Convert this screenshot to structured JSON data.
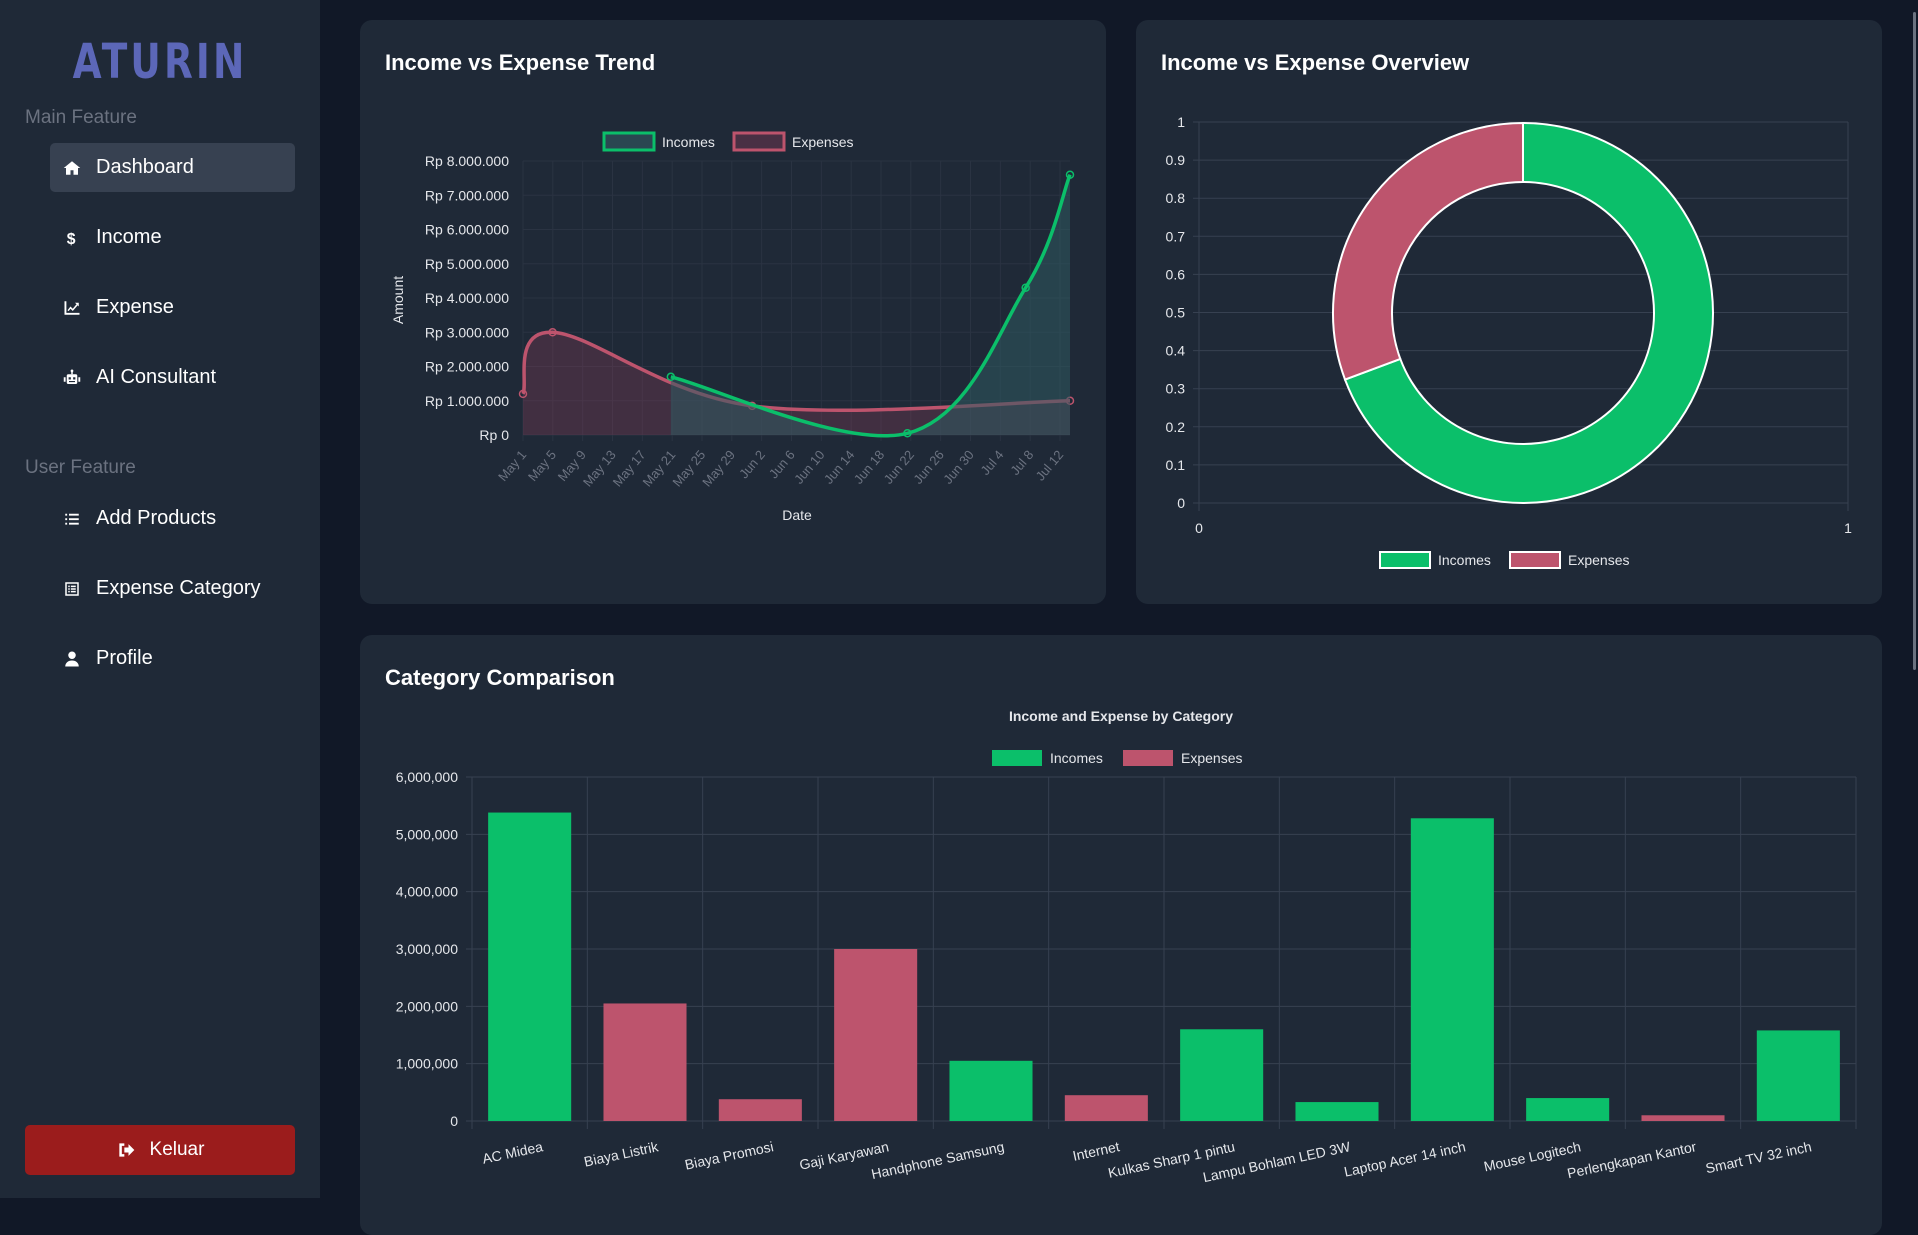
{
  "app": {
    "logo": "ATURIN"
  },
  "sidebar": {
    "main_section": "Main Feature",
    "main_items": [
      {
        "label": "Dashboard",
        "icon": "home-icon",
        "active": true
      },
      {
        "label": "Income",
        "icon": "dollar-icon",
        "active": false
      },
      {
        "label": "Expense",
        "icon": "chart-line-icon",
        "active": false
      },
      {
        "label": "AI Consultant",
        "icon": "robot-icon",
        "active": false
      }
    ],
    "user_section": "User Feature",
    "user_items": [
      {
        "label": "Add Products",
        "icon": "list-icon"
      },
      {
        "label": "Expense Category",
        "icon": "category-list-icon"
      },
      {
        "label": "Profile",
        "icon": "user-icon"
      }
    ],
    "logout_label": "Keluar"
  },
  "colors": {
    "income": "#0bbf6a",
    "expense": "#bd546d",
    "logout": "#9b1c1c",
    "accent": "#5c67b8"
  },
  "cards": {
    "trend_title": "Income vs Expense Trend",
    "overview_title": "Income vs Expense Overview",
    "category_title": "Category Comparison"
  },
  "chart_data": [
    {
      "type": "line",
      "title": "Income vs Expense Trend",
      "xlabel": "Date",
      "ylabel": "Amount",
      "ylim": [
        0,
        8000000
      ],
      "y_ticks": [
        "Rp 0",
        "Rp 1.000.000",
        "Rp 2.000.000",
        "Rp 3.000.000",
        "Rp 4.000.000",
        "Rp 5.000.000",
        "Rp 6.000.000",
        "Rp 7.000.000",
        "Rp 8.000.000"
      ],
      "x_ticks": [
        "May 1",
        "May 5",
        "May 9",
        "May 13",
        "May 17",
        "May 21",
        "May 25",
        "May 29",
        "Jun 2",
        "Jun 6",
        "Jun 10",
        "Jun 14",
        "Jun 18",
        "Jun 22",
        "Jun 26",
        "Jun 30",
        "Jul 4",
        "Jul 8",
        "Jul 12"
      ],
      "x_range_days": [
        0,
        74
      ],
      "legend": "top",
      "grid": true,
      "series": [
        {
          "name": "Incomes",
          "points": [
            {
              "day": 20,
              "value": 1700000
            },
            {
              "day": 52,
              "value": 50000
            },
            {
              "day": 68,
              "value": 4300000
            },
            {
              "day": 74,
              "value": 7600000
            }
          ]
        },
        {
          "name": "Expenses",
          "points": [
            {
              "day": 0,
              "value": 1200000
            },
            {
              "day": 4,
              "value": 3000000
            },
            {
              "day": 31,
              "value": 850000
            },
            {
              "day": 74,
              "value": 1000000
            }
          ]
        }
      ]
    },
    {
      "type": "pie",
      "subtype": "doughnut",
      "title": "Income vs Expense Overview",
      "labels": [
        "Incomes",
        "Expenses"
      ],
      "values": [
        69.3,
        30.7
      ],
      "unit": "percent",
      "x_ticks": [
        "0",
        "1"
      ],
      "y_ticks": [
        "0",
        "0.1",
        "0.2",
        "0.3",
        "0.4",
        "0.5",
        "0.6",
        "0.7",
        "0.8",
        "0.9",
        "1"
      ],
      "legend": "bottom",
      "grid": true
    },
    {
      "type": "bar",
      "title": "Income and Expense by Category",
      "categories": [
        "AC Midea",
        "Biaya Listrik",
        "Biaya Promosi",
        "Gaji Karyawan",
        "Handphone Samsung",
        "Internet",
        "Kulkas Sharp 1 pintu",
        "Lampu Bohlam LED 3W",
        "Laptop Acer 14 inch",
        "Mouse Logitech",
        "Perlengkapan Kantor",
        "Smart TV 32 inch"
      ],
      "types": [
        "Incomes",
        "Expenses",
        "Expenses",
        "Expenses",
        "Incomes",
        "Expenses",
        "Incomes",
        "Incomes",
        "Incomes",
        "Incomes",
        "Expenses",
        "Incomes"
      ],
      "values": [
        5380000,
        2050000,
        380000,
        3000000,
        1050000,
        450000,
        1600000,
        330000,
        5280000,
        400000,
        100000,
        1580000
      ],
      "series": [
        {
          "name": "Incomes"
        },
        {
          "name": "Expenses"
        }
      ],
      "ylim": [
        0,
        6000000
      ],
      "y_ticks": [
        "0",
        "1,000,000",
        "2,000,000",
        "3,000,000",
        "4,000,000",
        "5,000,000",
        "6,000,000"
      ],
      "legend": "top",
      "grid": true
    }
  ]
}
